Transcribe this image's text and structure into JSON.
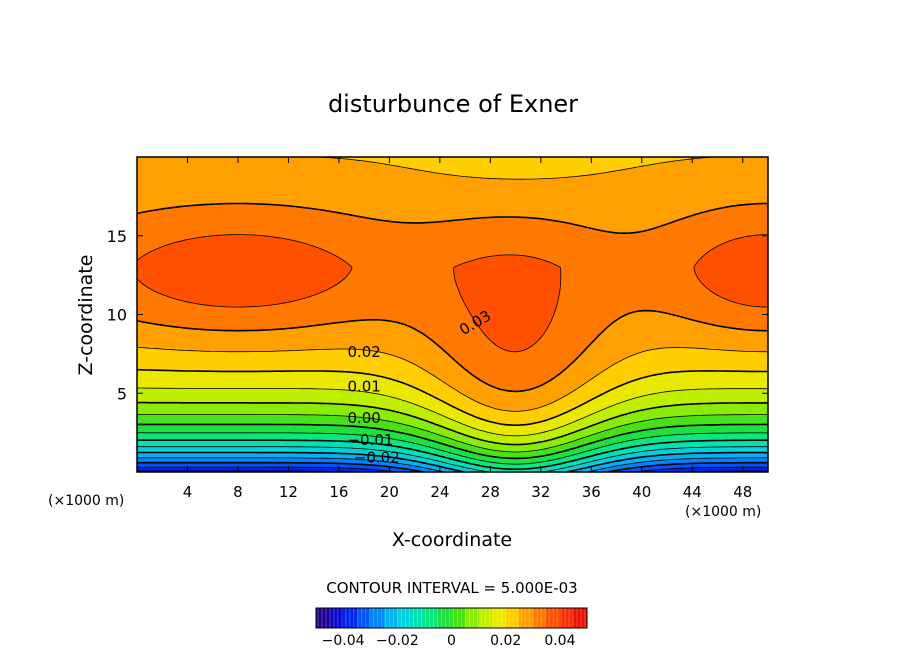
{
  "chart_data": {
    "type": "heatmap",
    "subtype": "filled-contour",
    "title": "disturbunce of Exner",
    "xlabel": "X-coordinate",
    "ylabel": "Z-coordinate",
    "x_unit": "(×1000 m)",
    "z_unit": "(×1000 m)",
    "xlim": [
      0,
      50
    ],
    "ylim": [
      0,
      20
    ],
    "x_ticks": [
      4,
      8,
      12,
      16,
      20,
      24,
      28,
      32,
      36,
      40,
      44,
      48
    ],
    "y_ticks": [
      5,
      10,
      15
    ],
    "field": {
      "description_note": "",
      "min_value": -0.045,
      "max_value": 0.045,
      "contour_interval_value": 0.005
    },
    "contour_labels": [
      {
        "text": "0.03",
        "value": 0.03
      },
      {
        "text": "0.03",
        "value": 0.03
      },
      {
        "text": "0.02",
        "value": 0.02
      },
      {
        "text": "0.01",
        "value": 0.01
      },
      {
        "text": "0.00",
        "value": 0.0
      },
      {
        "text": "−0.01",
        "value": -0.01
      },
      {
        "text": "−0.02",
        "value": -0.02
      }
    ],
    "contour_interval_text": "CONTOUR INTERVAL = 5.000E-03",
    "colorbar": {
      "range": [
        -0.05,
        0.05
      ],
      "ticks": [
        "−0.04",
        "−0.02",
        "0",
        "0.02",
        "0.04"
      ],
      "tick_values": [
        -0.04,
        -0.02,
        0,
        0.02,
        0.04
      ]
    },
    "grid": false,
    "legend": "colorbar-bottom"
  }
}
